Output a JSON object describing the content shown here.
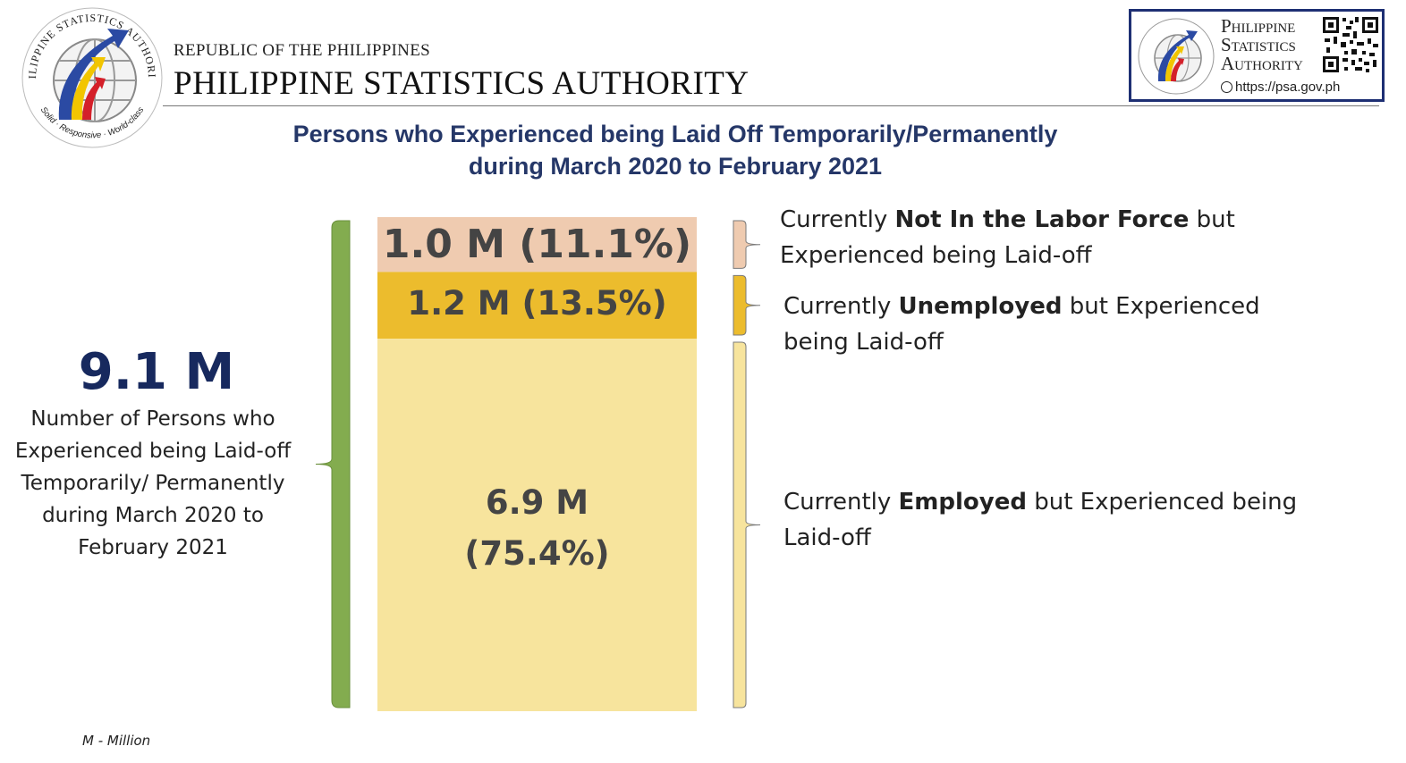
{
  "header": {
    "republic": "REPUBLIC OF THE PHILIPPINES",
    "agency": "PHILIPPINE STATISTICS AUTHORITY",
    "logo_ring_top": "PHILIPPINE STATISTICS AUTHORITY",
    "logo_ring_bottom": "Solid · Responsive · World-class",
    "badge": {
      "line1": "Philippine",
      "line2": "Statistics",
      "line3": "Authority",
      "url": "https://psa.gov.ph"
    }
  },
  "chart_data": {
    "type": "bar",
    "stacked": true,
    "title": "Persons who Experienced being Laid Off Temporarily/Permanently during March 2020 to February 2021",
    "title_lines": [
      "Persons who Experienced being Laid Off Temporarily/Permanently",
      "during March 2020 to February 2021"
    ],
    "total": {
      "value_label": "9.1 M",
      "value": 9.1,
      "description_lines": [
        "Number of Persons who",
        "Experienced being Laid-off",
        "Temporarily/ Permanently",
        "during March 2020 to",
        "February 2021"
      ]
    },
    "segments": [
      {
        "key": "nilf",
        "value": 1.0,
        "percent": 11.1,
        "label": "1.0 M (11.1%)",
        "color": "#efcbb0",
        "annotation": {
          "pre": "Currently ",
          "bold": "Not In the Labor Force",
          "post_line1": " but",
          "line2": "Experienced being Laid-off"
        }
      },
      {
        "key": "unemployed",
        "value": 1.2,
        "percent": 13.5,
        "label": "1.2 M (13.5%)",
        "color": "#ecbc2d",
        "annotation": {
          "pre": "Currently ",
          "bold": "Unemployed",
          "post_line1": " but Experienced",
          "line2": "being Laid-off"
        }
      },
      {
        "key": "employed",
        "value": 6.9,
        "percent": 75.4,
        "label_lines": [
          "6.9 M",
          "(75.4%)"
        ],
        "color": "#f7e49d",
        "annotation": {
          "pre": "Currently ",
          "bold": "Employed",
          "post_line1": " but Experienced being",
          "line2": "Laid-off"
        }
      }
    ],
    "total_bar_color": "#83ac4f"
  },
  "footnote": "M - Million"
}
